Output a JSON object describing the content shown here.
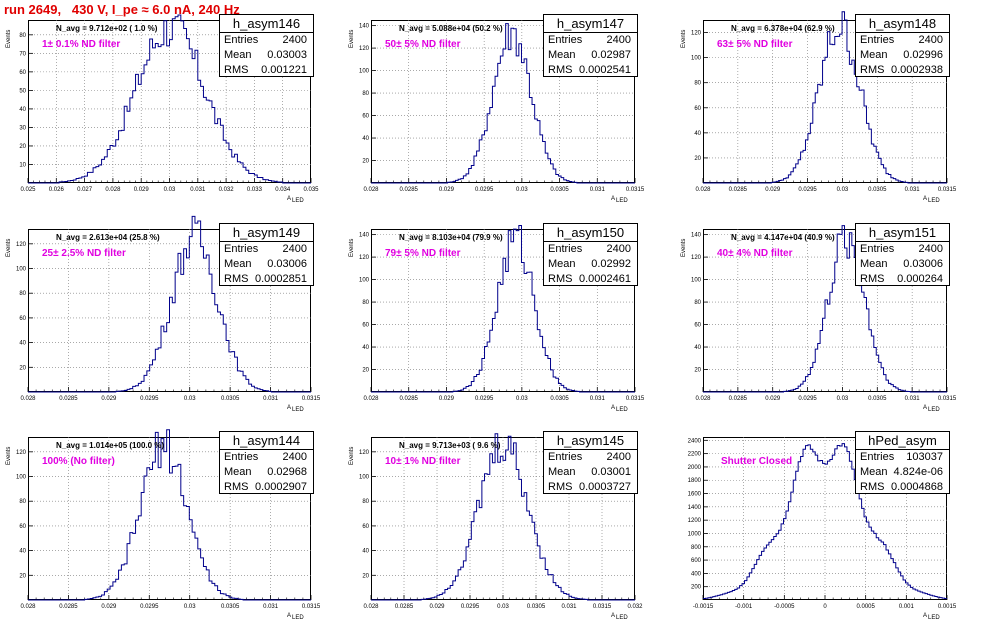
{
  "header": {
    "title": "run 2649,   430 V, I_pe ≈ 6.0 nA, 240 Hz"
  },
  "colors": {
    "title": "#e00000",
    "histogram": "#00008b",
    "annotation": "#e000e0",
    "grid": "#777777"
  },
  "chart_data": [
    {
      "type": "bar",
      "title": "",
      "xlabel": "A_LED",
      "ylabel": "Events",
      "xlim": [
        0.025,
        0.035
      ],
      "ylim": [
        0,
        88
      ],
      "grid": true,
      "xticks": [
        "0.025",
        "0.026",
        "0.027",
        "0.028",
        "0.029",
        "0.03",
        "0.031",
        "0.032",
        "0.033",
        "0.034",
        "0.035"
      ],
      "yticks": [
        "10",
        "20",
        "30",
        "40",
        "50",
        "60",
        "70",
        "80"
      ],
      "stats": {
        "name": "h_asym146",
        "entries": "2400",
        "mean": "0.03003",
        "rms": "0.001221"
      },
      "navg_text": "N_avg = 9.712e+02 ( 1.0 %)",
      "filter_text": "1± 0.1% ND filter",
      "peak": 84
    },
    {
      "type": "bar",
      "title": "",
      "xlabel": "A_LED",
      "ylabel": "Events",
      "xlim": [
        0.028,
        0.0315
      ],
      "ylim": [
        0,
        145
      ],
      "grid": true,
      "xticks": [
        "0.028",
        "0.0285",
        "0.029",
        "0.0295",
        "0.03",
        "0.0305",
        "0.031",
        "0.0315"
      ],
      "yticks": [
        "20",
        "40",
        "60",
        "80",
        "100",
        "120",
        "140"
      ],
      "stats": {
        "name": "h_asym147",
        "entries": "2400",
        "mean": "0.02987",
        "rms": "0.0002541"
      },
      "navg_text": "N_avg = 5.088e+04 (50.2 %)",
      "filter_text": "50± 5% ND filter",
      "peak": 135
    },
    {
      "type": "bar",
      "title": "",
      "xlabel": "A_LED",
      "ylabel": "Events",
      "xlim": [
        0.028,
        0.0315
      ],
      "ylim": [
        0,
        130
      ],
      "grid": true,
      "xticks": [
        "0.028",
        "0.0285",
        "0.029",
        "0.0295",
        "0.03",
        "0.0305",
        "0.031",
        "0.0315"
      ],
      "yticks": [
        "20",
        "40",
        "60",
        "80",
        "100",
        "120"
      ],
      "stats": {
        "name": "h_asym148",
        "entries": "2400",
        "mean": "0.02996",
        "rms": "0.0002938"
      },
      "navg_text": "N_avg = 6.378e+04 (62.9 %)",
      "filter_text": "63± 5% ND filter",
      "peak": 125
    },
    {
      "type": "bar",
      "title": "",
      "xlabel": "A_LED",
      "ylabel": "Events",
      "xlim": [
        0.028,
        0.0315
      ],
      "ylim": [
        0,
        132
      ],
      "grid": true,
      "xticks": [
        "0.028",
        "0.0285",
        "0.029",
        "0.0295",
        "0.03",
        "0.0305",
        "0.031",
        "0.0315"
      ],
      "yticks": [
        "20",
        "40",
        "60",
        "80",
        "100",
        "120"
      ],
      "stats": {
        "name": "h_asym149",
        "entries": "2400",
        "mean": "0.03006",
        "rms": "0.0002851"
      },
      "navg_text": "N_avg = 2.613e+04 (25.8 %)",
      "filter_text": "25± 2.5% ND filter",
      "peak": 126
    },
    {
      "type": "bar",
      "title": "",
      "xlabel": "A_LED",
      "ylabel": "Events",
      "xlim": [
        0.028,
        0.0315
      ],
      "ylim": [
        0,
        145
      ],
      "grid": true,
      "xticks": [
        "0.028",
        "0.0285",
        "0.029",
        "0.0295",
        "0.03",
        "0.0305",
        "0.031",
        "0.0315"
      ],
      "yticks": [
        "20",
        "40",
        "60",
        "80",
        "100",
        "120",
        "140"
      ],
      "stats": {
        "name": "h_asym150",
        "entries": "2400",
        "mean": "0.02992",
        "rms": "0.0002461"
      },
      "navg_text": "N_avg = 8.103e+04 (79.9 %)",
      "filter_text": "79± 5% ND filter",
      "peak": 135
    },
    {
      "type": "bar",
      "title": "",
      "xlabel": "A_LED",
      "ylabel": "Events",
      "xlim": [
        0.028,
        0.0315
      ],
      "ylim": [
        0,
        145
      ],
      "grid": true,
      "xticks": [
        "0.028",
        "0.0285",
        "0.029",
        "0.0295",
        "0.03",
        "0.0305",
        "0.031",
        "0.0315"
      ],
      "yticks": [
        "20",
        "40",
        "60",
        "80",
        "100",
        "120",
        "140"
      ],
      "stats": {
        "name": "h_asym151",
        "entries": "2400",
        "mean": "0.03006",
        "rms": "0.000264"
      },
      "navg_text": "N_avg = 4.147e+04 (40.9 %)",
      "filter_text": "40± 4% ND filter",
      "peak": 137
    },
    {
      "type": "bar",
      "title": "",
      "xlabel": "A_LED",
      "ylabel": "Events",
      "xlim": [
        0.028,
        0.0315
      ],
      "ylim": [
        0,
        132
      ],
      "grid": true,
      "xticks": [
        "0.028",
        "0.0285",
        "0.029",
        "0.0295",
        "0.03",
        "0.0305",
        "0.031",
        "0.0315"
      ],
      "yticks": [
        "20",
        "40",
        "60",
        "80",
        "100",
        "120"
      ],
      "stats": {
        "name": "h_asym144",
        "entries": "2400",
        "mean": "0.02968",
        "rms": "0.0002907"
      },
      "navg_text": "N_avg = 1.014e+05 (100.0 %)",
      "filter_text": "100% (No filter)",
      "peak": 125
    },
    {
      "type": "bar",
      "title": "",
      "xlabel": "A_LED",
      "ylabel": "Events",
      "xlim": [
        0.028,
        0.032
      ],
      "ylim": [
        0,
        132
      ],
      "grid": true,
      "xticks": [
        "0.028",
        "0.0285",
        "0.029",
        "0.0295",
        "0.03",
        "0.0305",
        "0.031",
        "0.0315",
        "0.032"
      ],
      "yticks": [
        "20",
        "40",
        "60",
        "80",
        "100",
        "120"
      ],
      "stats": {
        "name": "h_asym145",
        "entries": "2400",
        "mean": "0.03001",
        "rms": "0.0003727"
      },
      "navg_text": "N_avg = 9.713e+03 ( 9.6 %)",
      "filter_text": "10± 1% ND filter",
      "peak": 126
    },
    {
      "type": "bar",
      "title": "",
      "xlabel": "A_LED",
      "ylabel": "",
      "xlim": [
        -0.0015,
        0.0015
      ],
      "ylim": [
        0,
        2450
      ],
      "grid": true,
      "xticks": [
        "-0.0015",
        "-0.001",
        "-0.0005",
        "0",
        "0.0005",
        "0.001",
        "0.0015"
      ],
      "yticks": [
        "200",
        "400",
        "600",
        "800",
        "1000",
        "1200",
        "1400",
        "1600",
        "1800",
        "2000",
        "2200",
        "2400"
      ],
      "stats": {
        "name": "hPed_asym",
        "entries": "103037",
        "mean": "4.824e-06",
        "rms": "0.0004868"
      },
      "navg_text": "",
      "filter_text": "Shutter Closed",
      "peak": 2330
    }
  ]
}
